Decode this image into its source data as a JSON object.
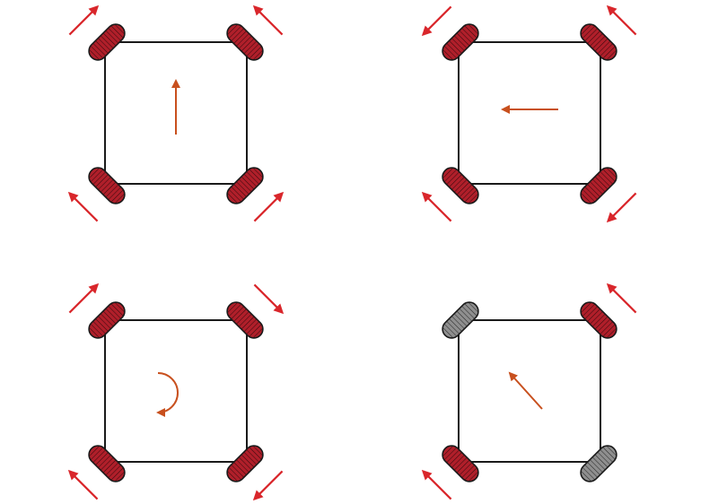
{
  "colors": {
    "background": "#ffffff",
    "chassis_stroke": "#1a1a1a",
    "wheel_active_fill": "#b01f2a",
    "wheel_idle_fill": "#8f8f8f",
    "wheel_stroke": "#1a1a1a",
    "wheel_arrow": "#d9262b",
    "motion_arrow": "#c8501e"
  },
  "diagrams": [
    {
      "name": "forward",
      "motion": "straight-up",
      "wheels": [
        {
          "corner": "top-left",
          "active": true,
          "arrow": "up-right"
        },
        {
          "corner": "top-right",
          "active": true,
          "arrow": "up-left"
        },
        {
          "corner": "bottom-left",
          "active": true,
          "arrow": "up-left"
        },
        {
          "corner": "bottom-right",
          "active": true,
          "arrow": "up-right"
        }
      ]
    },
    {
      "name": "strafe-left",
      "motion": "straight-left",
      "wheels": [
        {
          "corner": "top-left",
          "active": true,
          "arrow": "down-left"
        },
        {
          "corner": "top-right",
          "active": true,
          "arrow": "up-left"
        },
        {
          "corner": "bottom-left",
          "active": true,
          "arrow": "up-left"
        },
        {
          "corner": "bottom-right",
          "active": true,
          "arrow": "down-left"
        }
      ]
    },
    {
      "name": "rotate",
      "motion": "rotate-clockwise",
      "wheels": [
        {
          "corner": "top-left",
          "active": true,
          "arrow": "up-right"
        },
        {
          "corner": "top-right",
          "active": true,
          "arrow": "down-right"
        },
        {
          "corner": "bottom-left",
          "active": true,
          "arrow": "up-left"
        },
        {
          "corner": "bottom-right",
          "active": true,
          "arrow": "down-left"
        }
      ]
    },
    {
      "name": "diagonal",
      "motion": "diagonal-up-left",
      "wheels": [
        {
          "corner": "top-left",
          "active": false,
          "arrow": "none"
        },
        {
          "corner": "top-right",
          "active": true,
          "arrow": "up-left"
        },
        {
          "corner": "bottom-left",
          "active": true,
          "arrow": "up-left"
        },
        {
          "corner": "bottom-right",
          "active": false,
          "arrow": "none"
        }
      ]
    }
  ]
}
